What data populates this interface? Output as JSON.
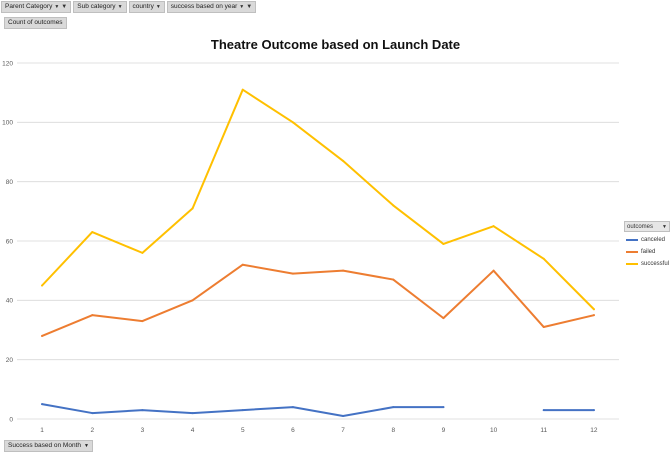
{
  "filters": [
    {
      "label": "Parent Category",
      "filtered": true
    },
    {
      "label": "Sub category",
      "filtered": false
    },
    {
      "label": "country",
      "filtered": false
    },
    {
      "label": "success based on year",
      "filtered": true
    }
  ],
  "value_field": "Count of outcomes",
  "axis_field": "Success based on Month",
  "legend": {
    "title": "outcomes",
    "items": [
      {
        "name": "canceled",
        "color": "#4472C4"
      },
      {
        "name": "failed",
        "color": "#ED7D31"
      },
      {
        "name": "successful",
        "color": "#FFC000"
      }
    ]
  },
  "chart_data": {
    "type": "line",
    "title": "Theatre Outcome based on Launch Date",
    "xlabel": "",
    "ylabel": "",
    "x": [
      "1",
      "2",
      "3",
      "4",
      "5",
      "6",
      "7",
      "8",
      "9",
      "10",
      "11",
      "12"
    ],
    "yticks": [
      "0",
      "20",
      "40",
      "60",
      "80",
      "100",
      "120"
    ],
    "ylim": [
      0,
      120
    ],
    "grid": true,
    "legend_position": "right",
    "series": [
      {
        "name": "canceled",
        "color": "#4472C4",
        "values": [
          5,
          2,
          3,
          2,
          3,
          4,
          1,
          4,
          4,
          null,
          3,
          3
        ]
      },
      {
        "name": "failed",
        "color": "#ED7D31",
        "values": [
          28,
          35,
          33,
          40,
          52,
          49,
          50,
          47,
          34,
          50,
          31,
          35
        ]
      },
      {
        "name": "successful",
        "color": "#FFC000",
        "values": [
          45,
          63,
          56,
          71,
          111,
          100,
          87,
          72,
          59,
          65,
          54,
          37
        ]
      }
    ]
  }
}
